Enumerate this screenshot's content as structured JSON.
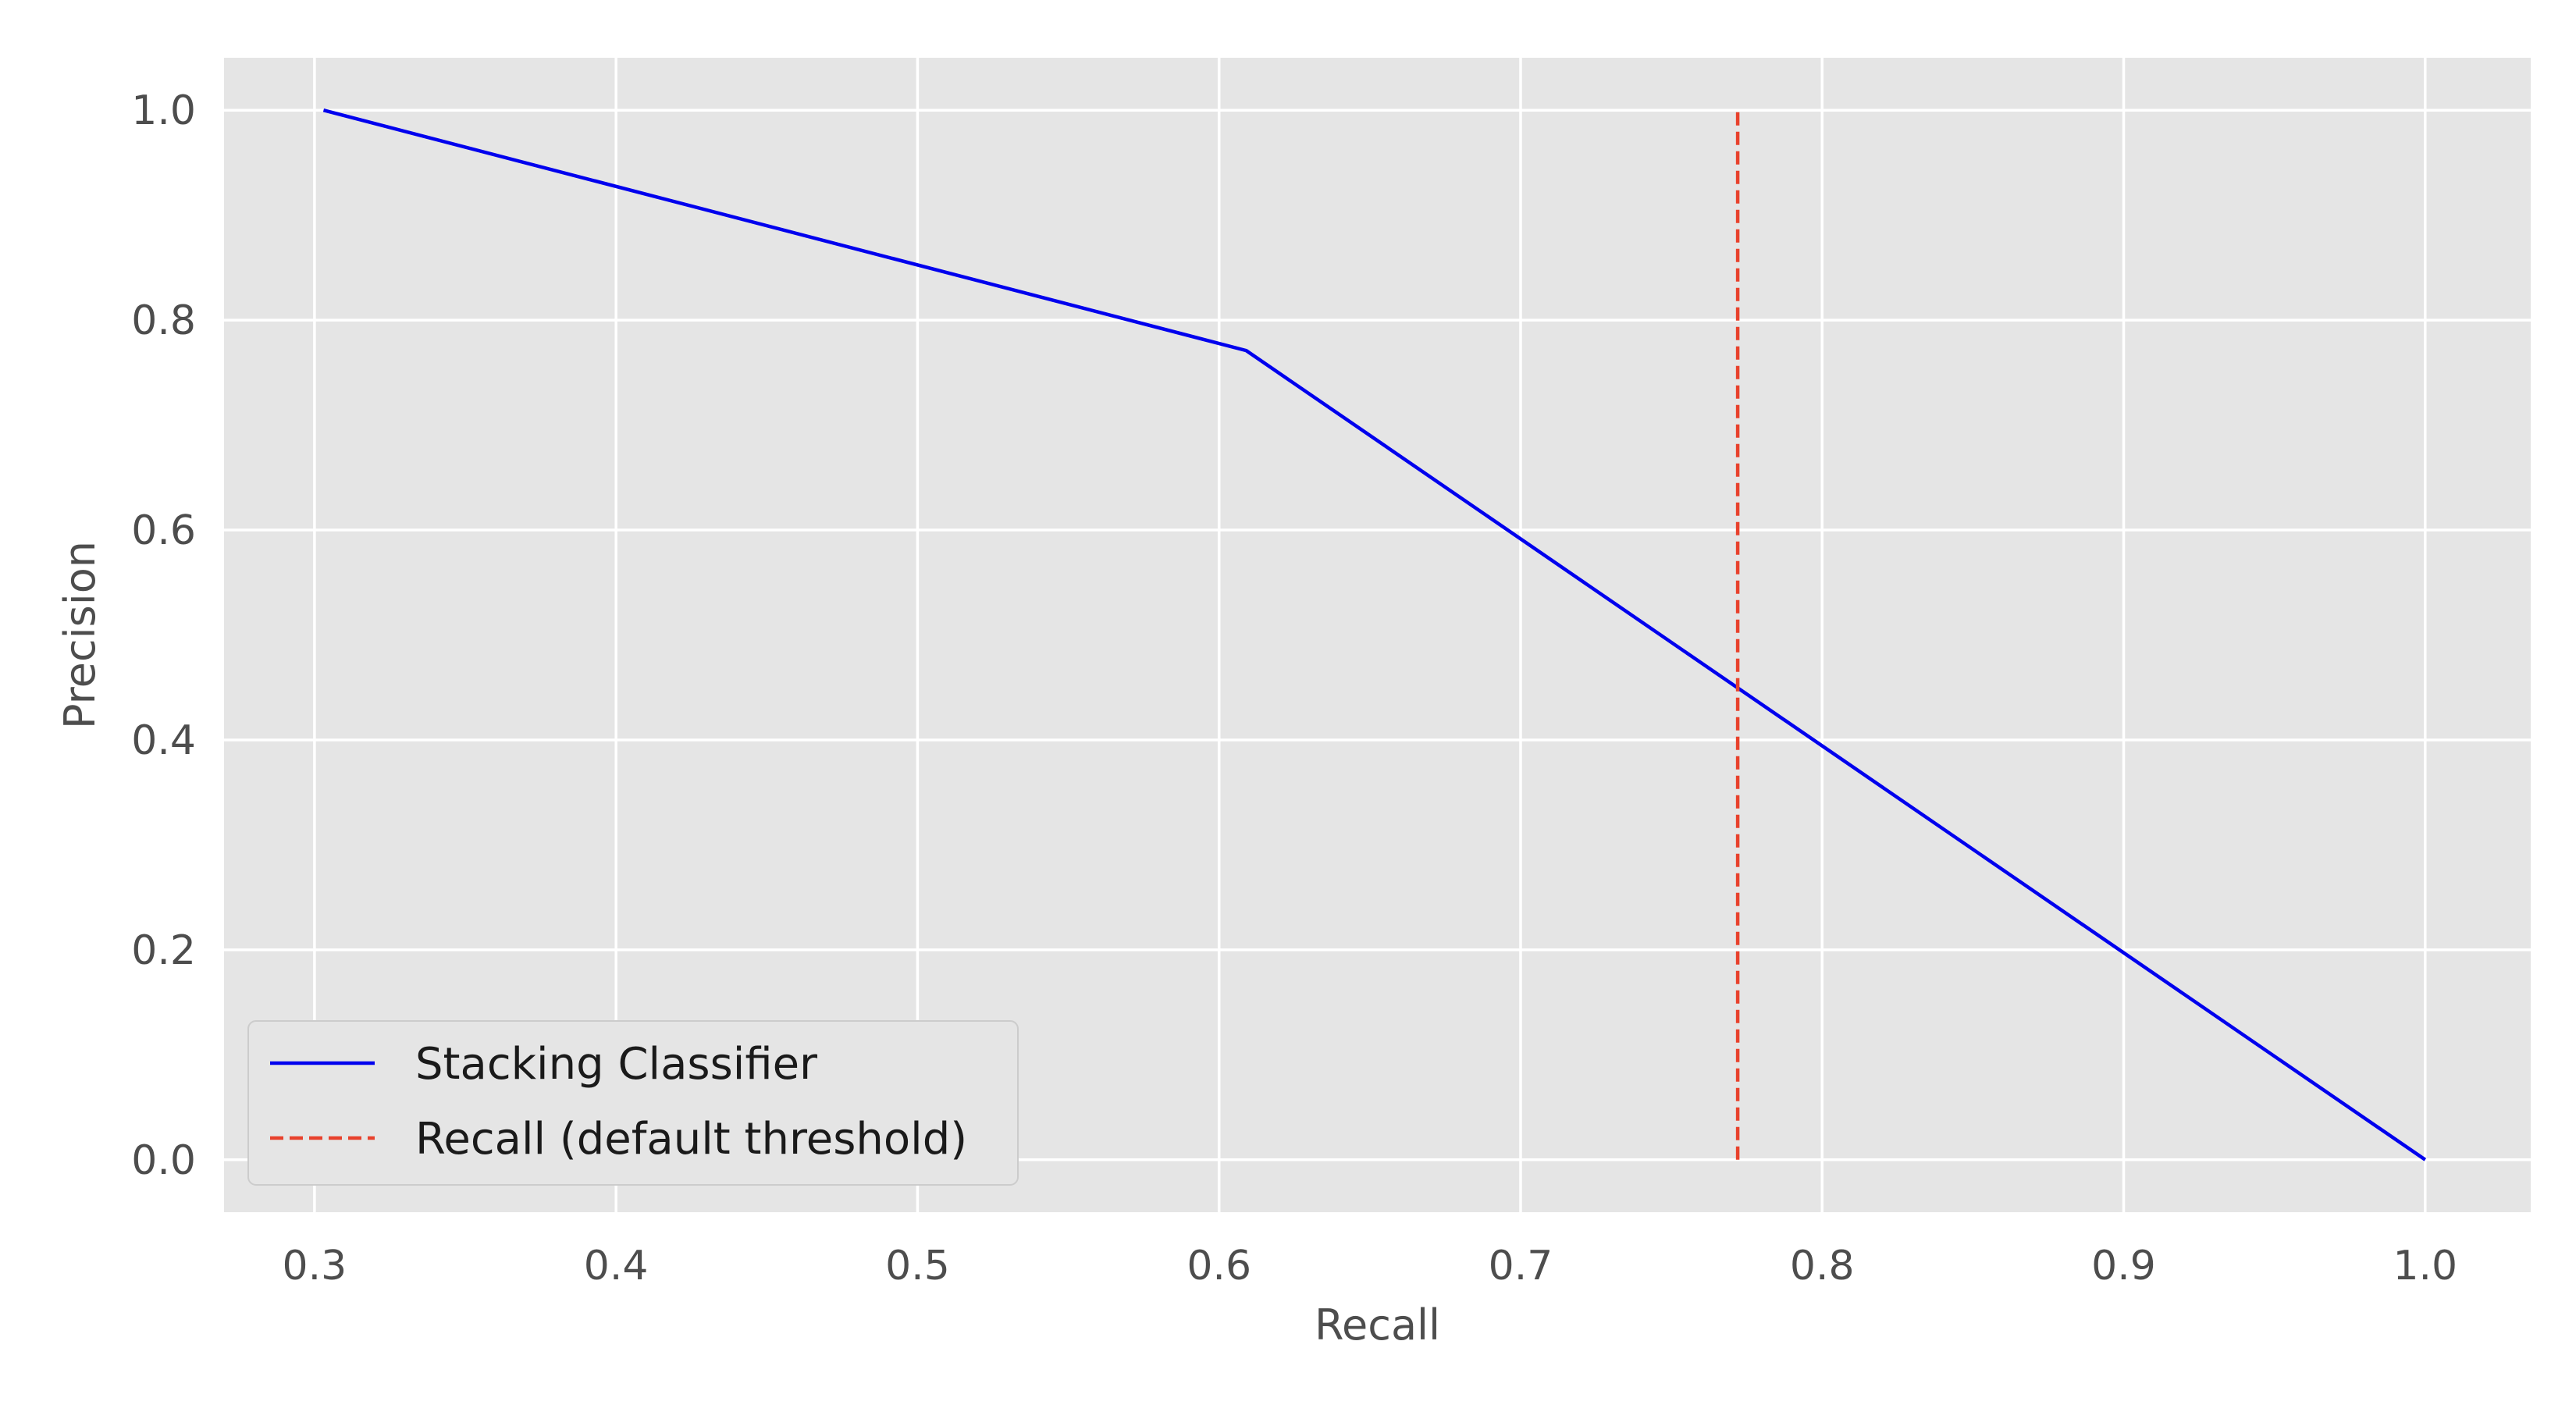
{
  "chart_data": {
    "type": "line",
    "xlabel": "Recall",
    "ylabel": "Precision",
    "xlim": [
      0.27,
      1.035
    ],
    "ylim": [
      -0.05,
      1.05
    ],
    "xticks": [
      0.3,
      0.4,
      0.5,
      0.6,
      0.7,
      0.8,
      0.9,
      1.0
    ],
    "yticks": [
      0.0,
      0.2,
      0.4,
      0.6,
      0.8,
      1.0
    ],
    "xtick_labels": [
      "0.3",
      "0.4",
      "0.5",
      "0.6",
      "0.7",
      "0.8",
      "0.9",
      "1.0"
    ],
    "ytick_labels": [
      "0.0",
      "0.2",
      "0.4",
      "0.6",
      "0.8",
      "1.0"
    ],
    "grid": true,
    "legend_position": "lower-left",
    "background": "#e5e5e5",
    "series": [
      {
        "name": "Stacking Classifier",
        "style": "solid",
        "color": "#0000ee",
        "x": [
          0.303,
          0.609,
          1.0
        ],
        "y": [
          1.0,
          0.771,
          0.0
        ]
      },
      {
        "name": "Recall (default threshold)",
        "style": "dashed",
        "color": "#e8412c",
        "x": [
          0.772,
          0.772
        ],
        "y": [
          0.0,
          1.0
        ]
      }
    ]
  }
}
